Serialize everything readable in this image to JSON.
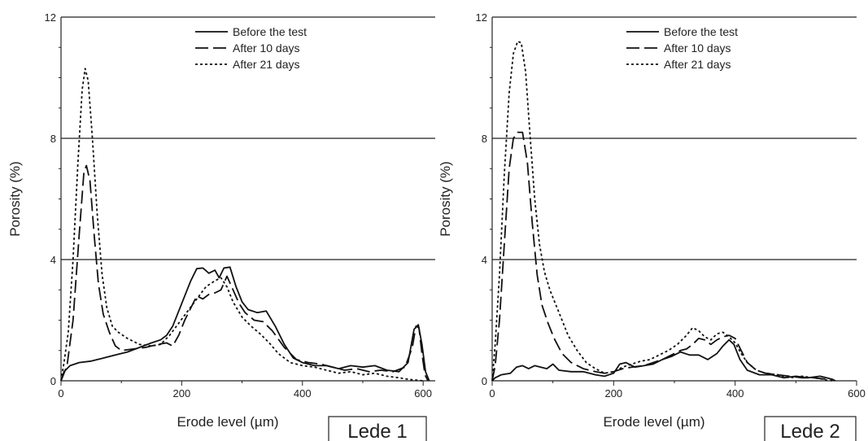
{
  "chart_data": [
    {
      "type": "line",
      "title": "",
      "xlabel": "Erode level (µm)",
      "ylabel": "Porosity (%)",
      "xlim": [
        0,
        620
      ],
      "ylim": [
        0,
        12
      ],
      "xticks": [
        "0",
        "200",
        "400",
        "600"
      ],
      "yticks": [
        "0",
        "4",
        "8",
        "12"
      ],
      "grid": "horizontal",
      "legend_position": "top-center",
      "panel_label": "Lede 1",
      "series": [
        {
          "name": "Before the test",
          "style": "solid",
          "points": [
            [
              0,
              0
            ],
            [
              5,
              0.3
            ],
            [
              15,
              0.5
            ],
            [
              30,
              0.6
            ],
            [
              50,
              0.65
            ],
            [
              70,
              0.75
            ],
            [
              90,
              0.85
            ],
            [
              110,
              0.95
            ],
            [
              130,
              1.1
            ],
            [
              150,
              1.25
            ],
            [
              165,
              1.35
            ],
            [
              175,
              1.5
            ],
            [
              185,
              1.8
            ],
            [
              195,
              2.3
            ],
            [
              205,
              2.8
            ],
            [
              215,
              3.3
            ],
            [
              225,
              3.7
            ],
            [
              235,
              3.72
            ],
            [
              245,
              3.55
            ],
            [
              255,
              3.65
            ],
            [
              262,
              3.4
            ],
            [
              270,
              3.72
            ],
            [
              280,
              3.75
            ],
            [
              290,
              3.1
            ],
            [
              300,
              2.6
            ],
            [
              310,
              2.35
            ],
            [
              325,
              2.25
            ],
            [
              340,
              2.3
            ],
            [
              355,
              1.8
            ],
            [
              370,
              1.2
            ],
            [
              385,
              0.75
            ],
            [
              400,
              0.6
            ],
            [
              420,
              0.5
            ],
            [
              440,
              0.5
            ],
            [
              460,
              0.4
            ],
            [
              480,
              0.5
            ],
            [
              500,
              0.45
            ],
            [
              520,
              0.5
            ],
            [
              540,
              0.35
            ],
            [
              560,
              0.3
            ],
            [
              575,
              0.6
            ],
            [
              585,
              1.7
            ],
            [
              592,
              1.85
            ],
            [
              598,
              1.2
            ],
            [
              604,
              0.3
            ],
            [
              610,
              0
            ]
          ]
        },
        {
          "name": "After 10 days",
          "style": "dashed",
          "points": [
            [
              0,
              0
            ],
            [
              10,
              0.5
            ],
            [
              20,
              2
            ],
            [
              30,
              4.8
            ],
            [
              38,
              6.9
            ],
            [
              42,
              7.1
            ],
            [
              48,
              6.6
            ],
            [
              55,
              4.8
            ],
            [
              62,
              3.2
            ],
            [
              70,
              2.2
            ],
            [
              80,
              1.6
            ],
            [
              90,
              1.15
            ],
            [
              100,
              1
            ],
            [
              120,
              1.05
            ],
            [
              140,
              1.1
            ],
            [
              160,
              1.2
            ],
            [
              175,
              1.25
            ],
            [
              185,
              1.15
            ],
            [
              195,
              1.5
            ],
            [
              205,
              2
            ],
            [
              215,
              2.4
            ],
            [
              225,
              2.8
            ],
            [
              235,
              2.7
            ],
            [
              245,
              2.85
            ],
            [
              255,
              2.9
            ],
            [
              265,
              3
            ],
            [
              275,
              3.45
            ],
            [
              285,
              3
            ],
            [
              295,
              2.55
            ],
            [
              305,
              2.25
            ],
            [
              320,
              2
            ],
            [
              335,
              1.95
            ],
            [
              350,
              1.65
            ],
            [
              370,
              1.1
            ],
            [
              390,
              0.7
            ],
            [
              410,
              0.6
            ],
            [
              430,
              0.55
            ],
            [
              450,
              0.45
            ],
            [
              470,
              0.35
            ],
            [
              490,
              0.4
            ],
            [
              510,
              0.3
            ],
            [
              530,
              0.35
            ],
            [
              550,
              0.3
            ],
            [
              570,
              0.45
            ],
            [
              582,
              1.1
            ],
            [
              588,
              1.8
            ],
            [
              593,
              1.75
            ],
            [
              598,
              0.9
            ],
            [
              603,
              0.2
            ],
            [
              608,
              0
            ]
          ]
        },
        {
          "name": "After 21 days",
          "style": "dotted",
          "points": [
            [
              0,
              0
            ],
            [
              5,
              0.6
            ],
            [
              12,
              1.6
            ],
            [
              20,
              4
            ],
            [
              28,
              7.2
            ],
            [
              35,
              9.6
            ],
            [
              40,
              10.3
            ],
            [
              45,
              9.9
            ],
            [
              52,
              8
            ],
            [
              60,
              5.5
            ],
            [
              68,
              3.5
            ],
            [
              76,
              2.4
            ],
            [
              85,
              1.8
            ],
            [
              95,
              1.6
            ],
            [
              110,
              1.4
            ],
            [
              130,
              1.2
            ],
            [
              150,
              1.15
            ],
            [
              165,
              1.2
            ],
            [
              180,
              1.5
            ],
            [
              195,
              1.9
            ],
            [
              210,
              2.3
            ],
            [
              225,
              2.7
            ],
            [
              240,
              3.1
            ],
            [
              255,
              3.3
            ],
            [
              265,
              3.4
            ],
            [
              275,
              3.1
            ],
            [
              285,
              2.6
            ],
            [
              300,
              2.1
            ],
            [
              315,
              1.8
            ],
            [
              330,
              1.55
            ],
            [
              345,
              1.25
            ],
            [
              360,
              0.9
            ],
            [
              380,
              0.6
            ],
            [
              400,
              0.5
            ],
            [
              420,
              0.45
            ],
            [
              440,
              0.35
            ],
            [
              460,
              0.25
            ],
            [
              480,
              0.3
            ],
            [
              500,
              0.2
            ],
            [
              520,
              0.25
            ],
            [
              540,
              0.15
            ],
            [
              560,
              0.1
            ],
            [
              575,
              0.05
            ],
            [
              590,
              0.02
            ],
            [
              600,
              0
            ]
          ]
        }
      ]
    },
    {
      "type": "line",
      "title": "",
      "xlabel": "Erode level (µm)",
      "ylabel": "Porosity (%)",
      "xlim": [
        0,
        600
      ],
      "ylim": [
        0,
        12
      ],
      "xticks": [
        "0",
        "200",
        "400",
        "600"
      ],
      "yticks": [
        "0",
        "4",
        "8",
        "12"
      ],
      "grid": "horizontal",
      "legend_position": "top-center",
      "panel_label": "Lede 2",
      "series": [
        {
          "name": "Before the test",
          "style": "solid",
          "points": [
            [
              0,
              0
            ],
            [
              5,
              0.1
            ],
            [
              15,
              0.2
            ],
            [
              30,
              0.25
            ],
            [
              40,
              0.45
            ],
            [
              50,
              0.5
            ],
            [
              60,
              0.4
            ],
            [
              70,
              0.5
            ],
            [
              80,
              0.45
            ],
            [
              90,
              0.4
            ],
            [
              100,
              0.55
            ],
            [
              110,
              0.35
            ],
            [
              130,
              0.3
            ],
            [
              150,
              0.3
            ],
            [
              170,
              0.2
            ],
            [
              185,
              0.15
            ],
            [
              200,
              0.25
            ],
            [
              210,
              0.55
            ],
            [
              220,
              0.6
            ],
            [
              235,
              0.45
            ],
            [
              250,
              0.5
            ],
            [
              265,
              0.55
            ],
            [
              280,
              0.7
            ],
            [
              295,
              0.8
            ],
            [
              310,
              0.95
            ],
            [
              325,
              0.85
            ],
            [
              340,
              0.85
            ],
            [
              355,
              0.7
            ],
            [
              370,
              0.9
            ],
            [
              380,
              1.15
            ],
            [
              390,
              1.35
            ],
            [
              398,
              1.2
            ],
            [
              408,
              0.7
            ],
            [
              420,
              0.35
            ],
            [
              440,
              0.2
            ],
            [
              460,
              0.2
            ],
            [
              480,
              0.1
            ],
            [
              500,
              0.15
            ],
            [
              520,
              0.1
            ],
            [
              540,
              0.15
            ],
            [
              560,
              0.05
            ],
            [
              565,
              0
            ]
          ]
        },
        {
          "name": "After 10 days",
          "style": "dashed",
          "points": [
            [
              0,
              0
            ],
            [
              5,
              0.5
            ],
            [
              12,
              2
            ],
            [
              20,
              4.5
            ],
            [
              28,
              7
            ],
            [
              35,
              8
            ],
            [
              42,
              8.2
            ],
            [
              50,
              8.2
            ],
            [
              58,
              7.2
            ],
            [
              66,
              5.2
            ],
            [
              74,
              3.5
            ],
            [
              82,
              2.5
            ],
            [
              92,
              1.9
            ],
            [
              102,
              1.4
            ],
            [
              115,
              0.9
            ],
            [
              130,
              0.6
            ],
            [
              150,
              0.4
            ],
            [
              170,
              0.3
            ],
            [
              185,
              0.25
            ],
            [
              200,
              0.3
            ],
            [
              215,
              0.4
            ],
            [
              230,
              0.45
            ],
            [
              250,
              0.5
            ],
            [
              265,
              0.6
            ],
            [
              280,
              0.7
            ],
            [
              295,
              0.85
            ],
            [
              310,
              1
            ],
            [
              320,
              1.05
            ],
            [
              330,
              1.2
            ],
            [
              340,
              1.4
            ],
            [
              350,
              1.35
            ],
            [
              360,
              1.2
            ],
            [
              370,
              1.35
            ],
            [
              380,
              1.45
            ],
            [
              390,
              1.5
            ],
            [
              400,
              1.4
            ],
            [
              410,
              1
            ],
            [
              420,
              0.6
            ],
            [
              435,
              0.35
            ],
            [
              450,
              0.25
            ],
            [
              470,
              0.2
            ],
            [
              490,
              0.15
            ],
            [
              510,
              0.1
            ],
            [
              530,
              0.1
            ],
            [
              550,
              0.05
            ],
            [
              560,
              0
            ]
          ]
        },
        {
          "name": "After 21 days",
          "style": "dotted",
          "points": [
            [
              0,
              0
            ],
            [
              5,
              1.2
            ],
            [
              12,
              3.5
            ],
            [
              20,
              6.8
            ],
            [
              28,
              9.5
            ],
            [
              35,
              10.8
            ],
            [
              42,
              11.2
            ],
            [
              48,
              11.15
            ],
            [
              55,
              10.2
            ],
            [
              62,
              8.2
            ],
            [
              70,
              6
            ],
            [
              78,
              4.5
            ],
            [
              86,
              3.6
            ],
            [
              95,
              3
            ],
            [
              105,
              2.5
            ],
            [
              115,
              2
            ],
            [
              125,
              1.5
            ],
            [
              140,
              1
            ],
            [
              155,
              0.6
            ],
            [
              170,
              0.4
            ],
            [
              185,
              0.25
            ],
            [
              200,
              0.3
            ],
            [
              215,
              0.45
            ],
            [
              230,
              0.55
            ],
            [
              245,
              0.65
            ],
            [
              260,
              0.7
            ],
            [
              275,
              0.85
            ],
            [
              290,
              1
            ],
            [
              305,
              1.2
            ],
            [
              320,
              1.5
            ],
            [
              330,
              1.75
            ],
            [
              340,
              1.65
            ],
            [
              350,
              1.45
            ],
            [
              360,
              1.35
            ],
            [
              370,
              1.55
            ],
            [
              380,
              1.6
            ],
            [
              390,
              1.45
            ],
            [
              400,
              1.25
            ],
            [
              410,
              0.9
            ],
            [
              420,
              0.6
            ],
            [
              435,
              0.35
            ],
            [
              450,
              0.25
            ],
            [
              470,
              0.2
            ],
            [
              490,
              0.1
            ],
            [
              510,
              0.15
            ],
            [
              530,
              0.1
            ],
            [
              545,
              0.05
            ],
            [
              555,
              0
            ]
          ]
        }
      ]
    }
  ]
}
